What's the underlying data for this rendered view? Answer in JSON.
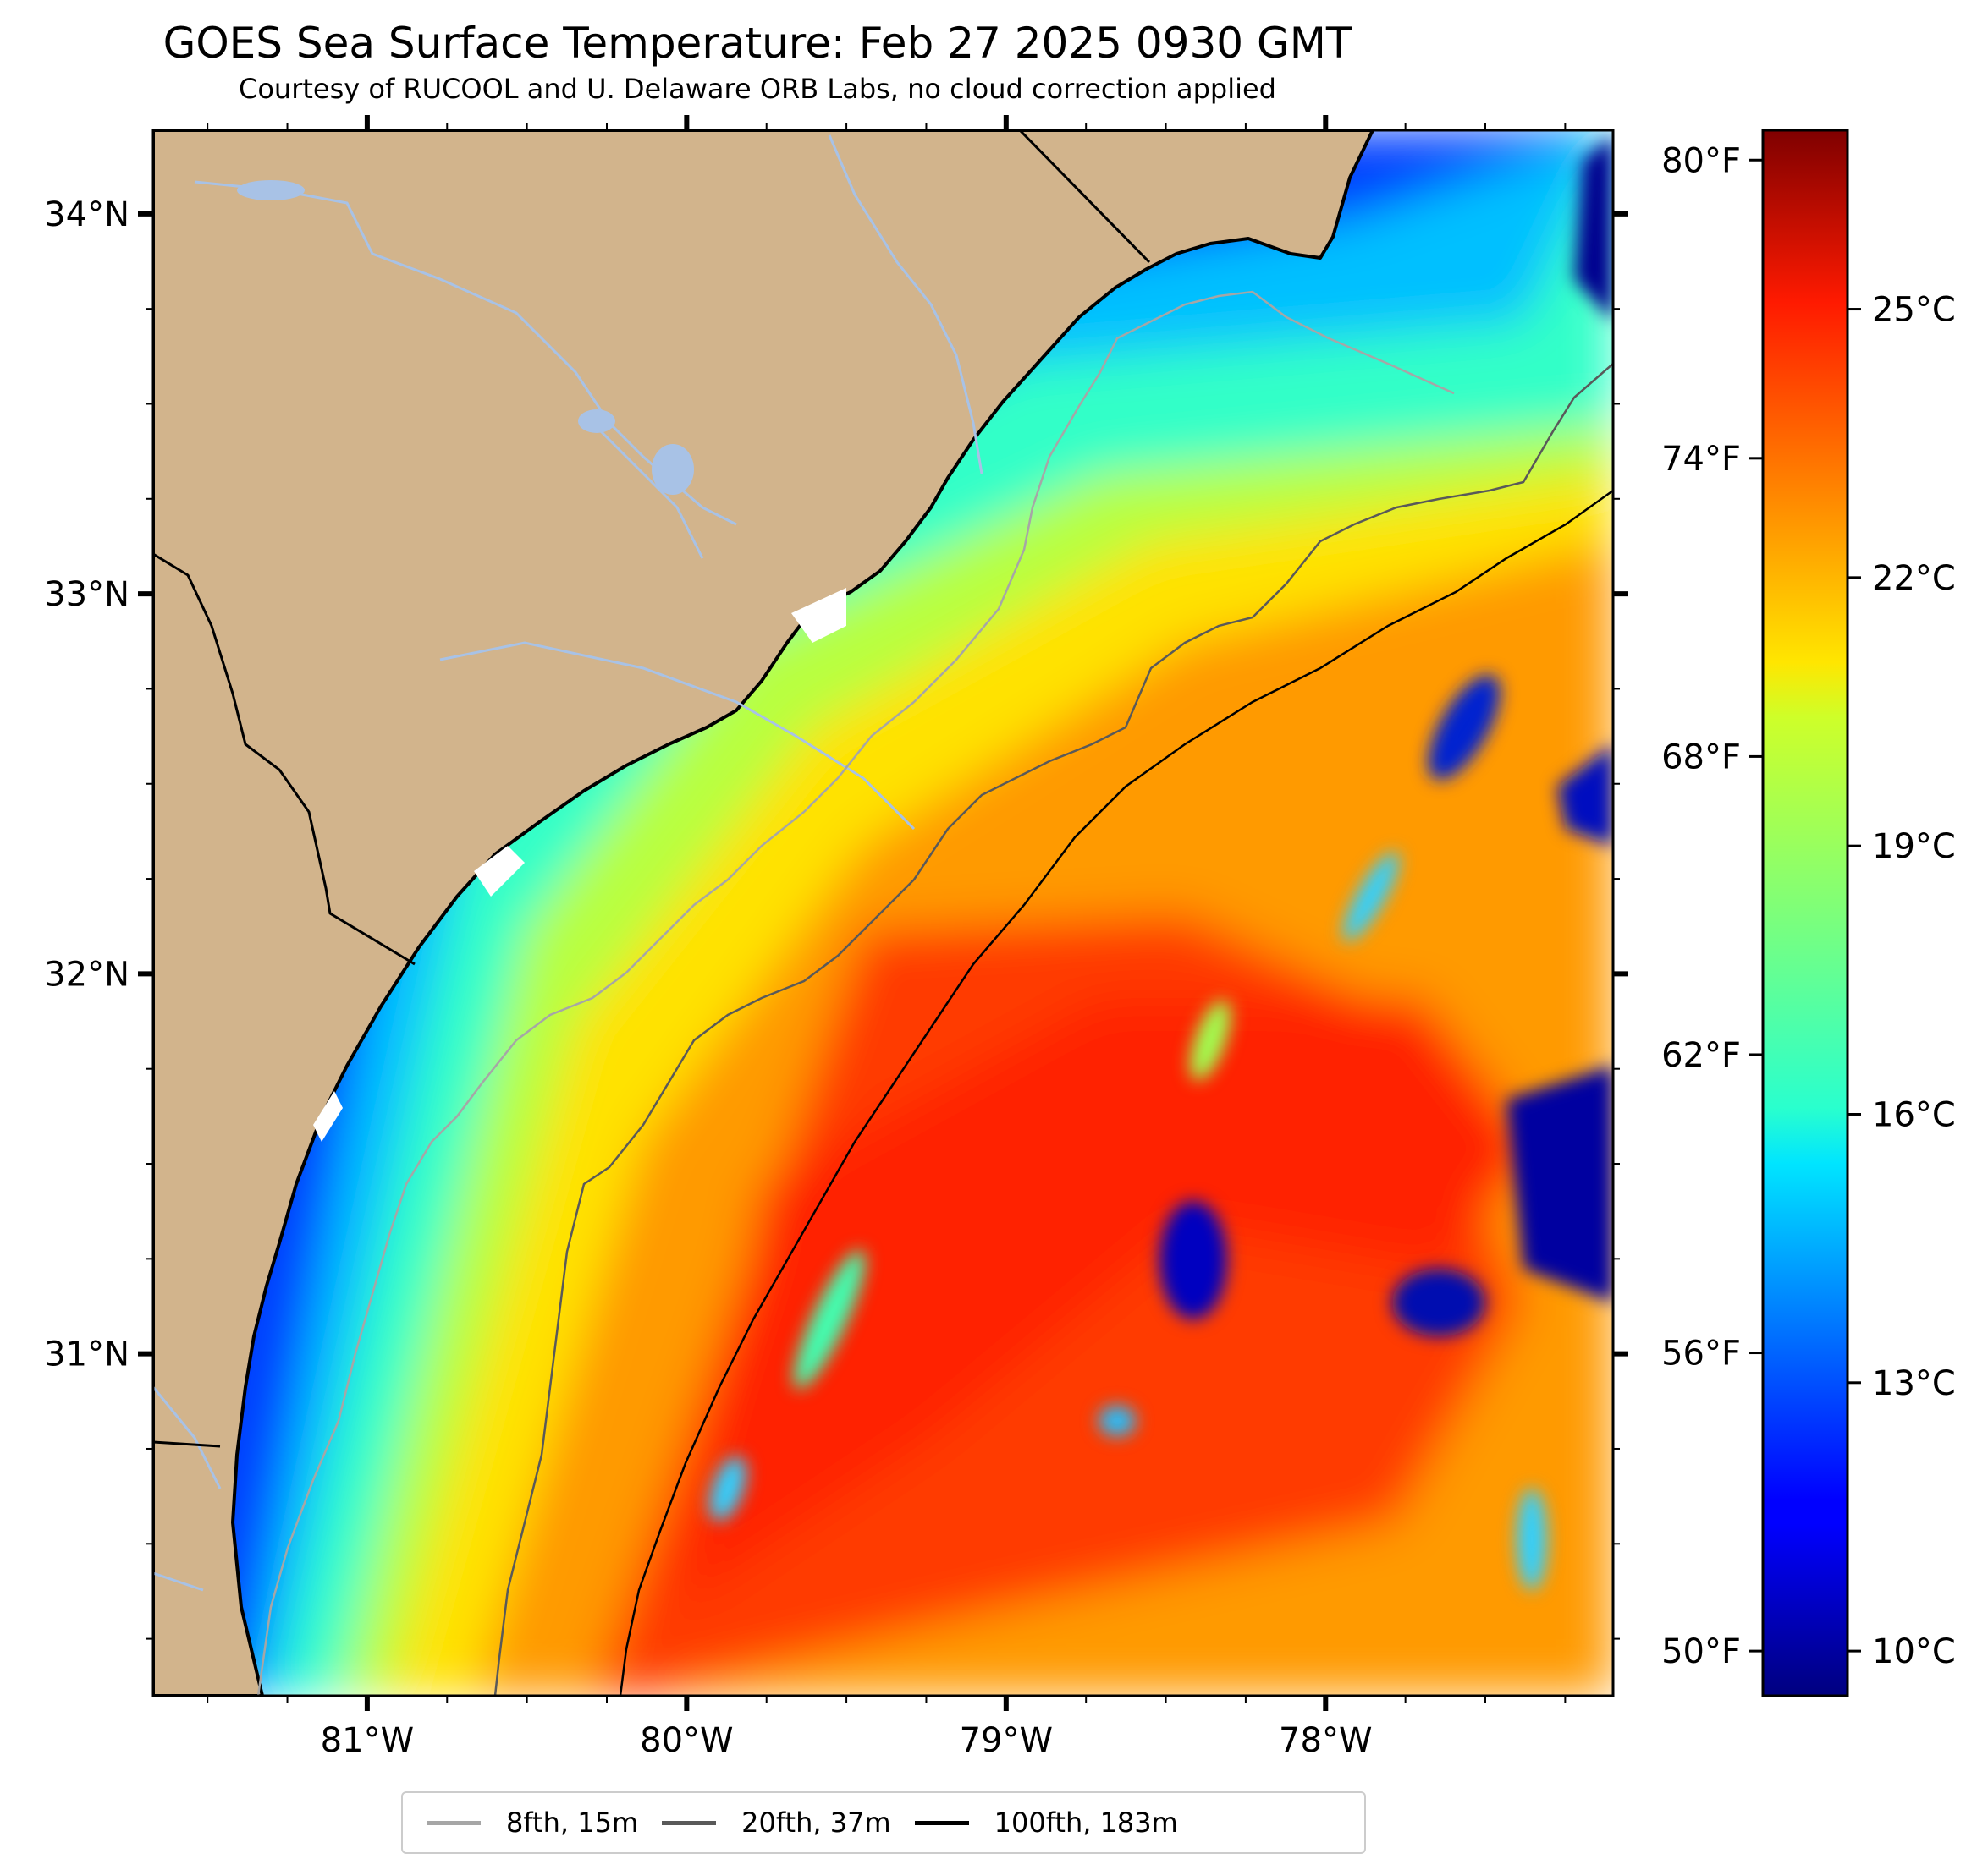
{
  "title": "GOES Sea Surface Temperature: Feb 27 2025 0930 GMT",
  "subtitle": "Courtesy of RUCOOL and U. Delaware ORB Labs, no cloud correction applied",
  "map": {
    "lon_range": [
      -81.67,
      -77.1
    ],
    "lat_range": [
      30.1,
      34.22
    ],
    "land_color": "#d2b48c",
    "river_color": "#a8c2e6",
    "lat_ticks": [
      {
        "value": 34,
        "label": "34°N"
      },
      {
        "value": 33,
        "label": "33°N"
      },
      {
        "value": 32,
        "label": "32°N"
      },
      {
        "value": 31,
        "label": "31°N"
      }
    ],
    "lon_ticks": [
      {
        "value": -81,
        "label": "81°W"
      },
      {
        "value": -80,
        "label": "80°W"
      },
      {
        "value": -79,
        "label": "79°W"
      },
      {
        "value": -78,
        "label": "78°W"
      }
    ]
  },
  "colorbar": {
    "colormap": "jet",
    "celsius_range": [
      9.5,
      27.0
    ],
    "celsius_ticks": [
      "10°C",
      "13°C",
      "16°C",
      "19°C",
      "22°C",
      "25°C"
    ],
    "fahrenheit_ticks": [
      "50°F",
      "56°F",
      "62°F",
      "68°F",
      "74°F",
      "80°F"
    ]
  },
  "legend": [
    {
      "label": "8fth, 15m",
      "color": "#a6a6a6"
    },
    {
      "label": "20fth, 37m",
      "color": "#595959"
    },
    {
      "label": "100fth, 183m",
      "color": "#000000"
    }
  ]
}
